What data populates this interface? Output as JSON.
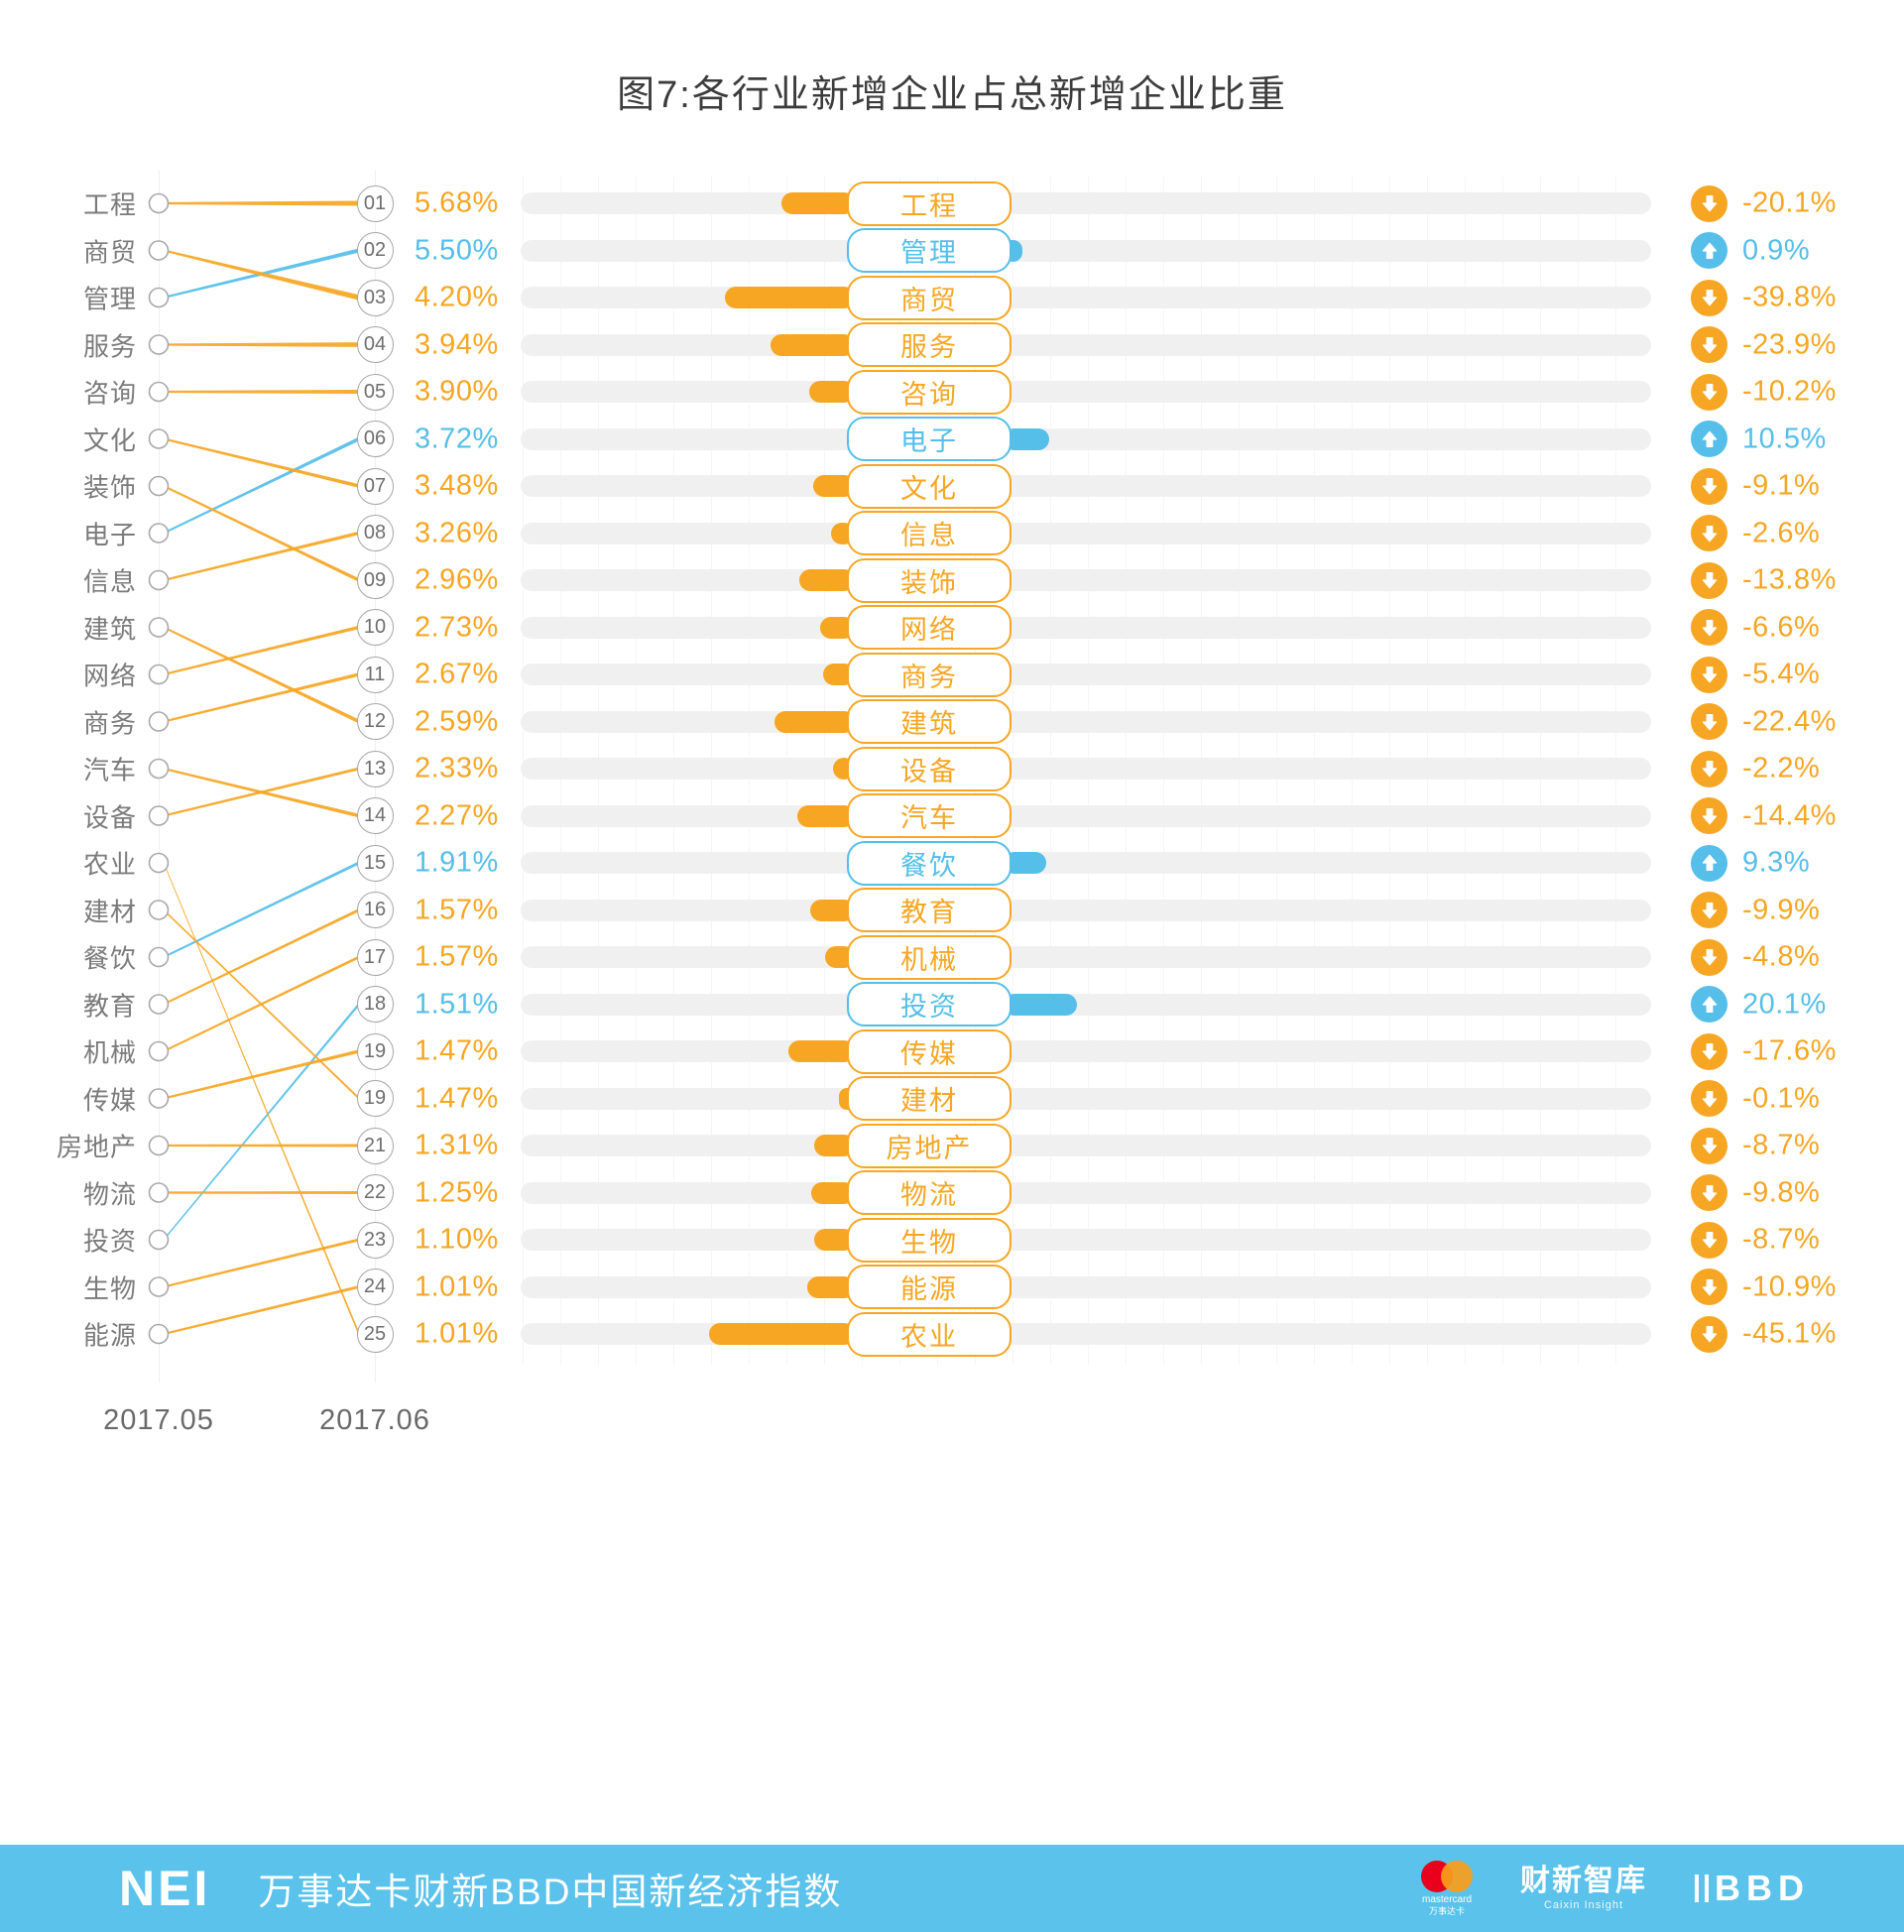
{
  "title": "图7:各行业新增企业占总新增企业比重",
  "axis": {
    "left_label": "2017.05",
    "right_label": "2017.06"
  },
  "colors": {
    "increase": "#55bee9",
    "decrease": "#f6a623",
    "track": "#f0f0f0",
    "footer_bg": "#5ac2eb"
  },
  "chart_data": {
    "type": "slopegraph_bar_combo",
    "title": "图7:各行业新增企业占总新增企业比重",
    "periods": [
      "2017.05",
      "2017.06"
    ],
    "legend_note": "orange = decrease vs prior month, blue = increase; left slope shows rank change 2017.05 → 2017.06; middle bar = month-over-month change magnitude; right column = change %",
    "rows": [
      {
        "industry": "工程",
        "prev_rank": 1,
        "rank_label": "01",
        "share_label": "5.68%",
        "share_pct": 5.68,
        "change_pct": -20.1,
        "change_label": "-20.1%",
        "direction": "down"
      },
      {
        "industry": "管理",
        "prev_rank": 3,
        "rank_label": "02",
        "share_label": "5.50%",
        "share_pct": 5.5,
        "change_pct": 0.9,
        "change_label": "0.9%",
        "direction": "up"
      },
      {
        "industry": "商贸",
        "prev_rank": 2,
        "rank_label": "03",
        "share_label": "4.20%",
        "share_pct": 4.2,
        "change_pct": -39.8,
        "change_label": "-39.8%",
        "direction": "down"
      },
      {
        "industry": "服务",
        "prev_rank": 4,
        "rank_label": "04",
        "share_label": "3.94%",
        "share_pct": 3.94,
        "change_pct": -23.9,
        "change_label": "-23.9%",
        "direction": "down"
      },
      {
        "industry": "咨询",
        "prev_rank": 5,
        "rank_label": "05",
        "share_label": "3.90%",
        "share_pct": 3.9,
        "change_pct": -10.2,
        "change_label": "-10.2%",
        "direction": "down"
      },
      {
        "industry": "电子",
        "prev_rank": 8,
        "rank_label": "06",
        "share_label": "3.72%",
        "share_pct": 3.72,
        "change_pct": 10.5,
        "change_label": "10.5%",
        "direction": "up"
      },
      {
        "industry": "文化",
        "prev_rank": 6,
        "rank_label": "07",
        "share_label": "3.48%",
        "share_pct": 3.48,
        "change_pct": -9.1,
        "change_label": "-9.1%",
        "direction": "down"
      },
      {
        "industry": "信息",
        "prev_rank": 9,
        "rank_label": "08",
        "share_label": "3.26%",
        "share_pct": 3.26,
        "change_pct": -2.6,
        "change_label": "-2.6%",
        "direction": "down"
      },
      {
        "industry": "装饰",
        "prev_rank": 7,
        "rank_label": "09",
        "share_label": "2.96%",
        "share_pct": 2.96,
        "change_pct": -13.8,
        "change_label": "-13.8%",
        "direction": "down"
      },
      {
        "industry": "网络",
        "prev_rank": 11,
        "rank_label": "10",
        "share_label": "2.73%",
        "share_pct": 2.73,
        "change_pct": -6.6,
        "change_label": "-6.6%",
        "direction": "down"
      },
      {
        "industry": "商务",
        "prev_rank": 12,
        "rank_label": "11",
        "share_label": "2.67%",
        "share_pct": 2.67,
        "change_pct": -5.4,
        "change_label": "-5.4%",
        "direction": "down"
      },
      {
        "industry": "建筑",
        "prev_rank": 10,
        "rank_label": "12",
        "share_label": "2.59%",
        "share_pct": 2.59,
        "change_pct": -22.4,
        "change_label": "-22.4%",
        "direction": "down"
      },
      {
        "industry": "设备",
        "prev_rank": 14,
        "rank_label": "13",
        "share_label": "2.33%",
        "share_pct": 2.33,
        "change_pct": -2.2,
        "change_label": "-2.2%",
        "direction": "down"
      },
      {
        "industry": "汽车",
        "prev_rank": 13,
        "rank_label": "14",
        "share_label": "2.27%",
        "share_pct": 2.27,
        "change_pct": -14.4,
        "change_label": "-14.4%",
        "direction": "down"
      },
      {
        "industry": "餐饮",
        "prev_rank": 17,
        "rank_label": "15",
        "share_label": "1.91%",
        "share_pct": 1.91,
        "change_pct": 9.3,
        "change_label": "9.3%",
        "direction": "up"
      },
      {
        "industry": "教育",
        "prev_rank": 18,
        "rank_label": "16",
        "share_label": "1.57%",
        "share_pct": 1.57,
        "change_pct": -9.9,
        "change_label": "-9.9%",
        "direction": "down"
      },
      {
        "industry": "机械",
        "prev_rank": 19,
        "rank_label": "17",
        "share_label": "1.57%",
        "share_pct": 1.57,
        "change_pct": -4.8,
        "change_label": "-4.8%",
        "direction": "down"
      },
      {
        "industry": "投资",
        "prev_rank": 23,
        "rank_label": "18",
        "share_label": "1.51%",
        "share_pct": 1.51,
        "change_pct": 20.1,
        "change_label": "20.1%",
        "direction": "up"
      },
      {
        "industry": "传媒",
        "prev_rank": 20,
        "rank_label": "19",
        "share_label": "1.47%",
        "share_pct": 1.47,
        "change_pct": -17.6,
        "change_label": "-17.6%",
        "direction": "down"
      },
      {
        "industry": "建材",
        "prev_rank": 16,
        "rank_label": "19",
        "share_label": "1.47%",
        "share_pct": 1.47,
        "change_pct": -0.1,
        "change_label": "-0.1%",
        "direction": "down"
      },
      {
        "industry": "房地产",
        "prev_rank": 21,
        "rank_label": "21",
        "share_label": "1.31%",
        "share_pct": 1.31,
        "change_pct": -8.7,
        "change_label": "-8.7%",
        "direction": "down"
      },
      {
        "industry": "物流",
        "prev_rank": 22,
        "rank_label": "22",
        "share_label": "1.25%",
        "share_pct": 1.25,
        "change_pct": -9.8,
        "change_label": "-9.8%",
        "direction": "down"
      },
      {
        "industry": "生物",
        "prev_rank": 24,
        "rank_label": "23",
        "share_label": "1.10%",
        "share_pct": 1.1,
        "change_pct": -8.7,
        "change_label": "-8.7%",
        "direction": "down"
      },
      {
        "industry": "能源",
        "prev_rank": 25,
        "rank_label": "24",
        "share_label": "1.01%",
        "share_pct": 1.01,
        "change_pct": -10.9,
        "change_label": "-10.9%",
        "direction": "down"
      },
      {
        "industry": "农业",
        "prev_rank": 15,
        "rank_label": "25",
        "share_label": "1.01%",
        "share_pct": 1.01,
        "change_pct": -45.1,
        "change_label": "-45.1%",
        "direction": "down"
      }
    ]
  },
  "footer": {
    "nei": "NEI",
    "title": "万事达卡财新BBD中国新经济指数",
    "mastercard_label": "mastercard",
    "mastercard_sub": "万事达卡",
    "caixin": "财新智库",
    "caixin_sub": "Caixin Insight",
    "bbd": "BBD"
  }
}
